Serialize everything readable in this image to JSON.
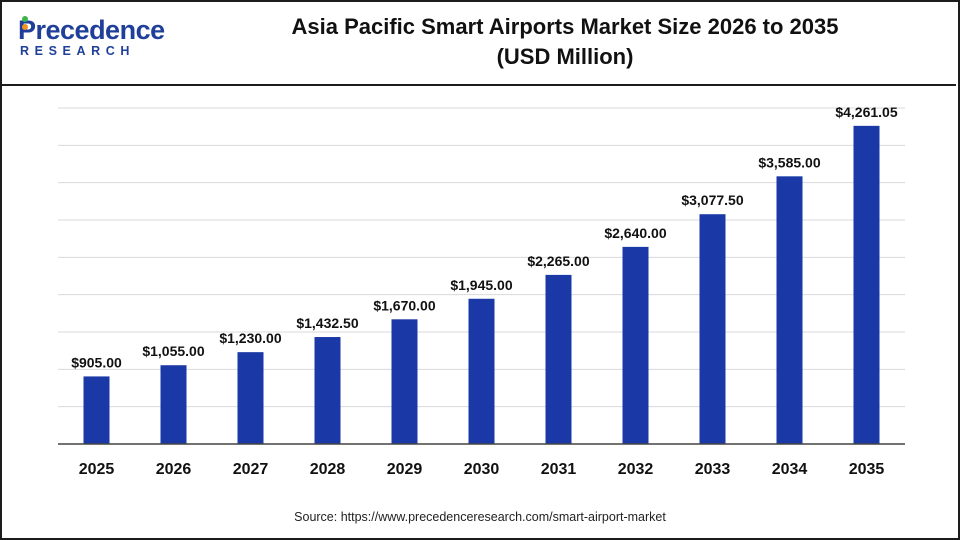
{
  "logo": {
    "wordmark": "Precedence",
    "subtitle": "RESEARCH"
  },
  "header": {
    "title_line1": "Asia Pacific Smart Airports Market Size 2026 to 2035",
    "title_line2": "(USD Million)"
  },
  "source": "Source: https://www.precedenceresearch.com/smart-airport-market",
  "colors": {
    "bar": "#1a38a6",
    "logo_blue": "#1f3f9a",
    "logo_dot_green": "#3cb44b",
    "logo_dot_orange": "#f29222",
    "gridline": "#d9d9d9",
    "axis": "#444444"
  },
  "chart_data": {
    "type": "bar",
    "title": "Asia Pacific Smart Airports Market Size 2026 to 2035 (USD Million)",
    "xlabel": "",
    "ylabel": "",
    "categories": [
      "2025",
      "2026",
      "2027",
      "2028",
      "2029",
      "2030",
      "2031",
      "2032",
      "2033",
      "2034",
      "2035"
    ],
    "values": [
      905.0,
      1055.0,
      1230.0,
      1432.5,
      1670.0,
      1945.0,
      2265.0,
      2640.0,
      3077.5,
      3585.0,
      4261.05
    ],
    "data_labels": [
      "$905.00",
      "$1,055.00",
      "$1,230.00",
      "$1,432.50",
      "$1,670.00",
      "$1,945.00",
      "$2,265.00",
      "$2,640.00",
      "$3,077.50",
      "$3,585.00",
      "$4,261.05"
    ],
    "ylim": [
      0,
      4500
    ],
    "grid": true,
    "legend": "none"
  }
}
